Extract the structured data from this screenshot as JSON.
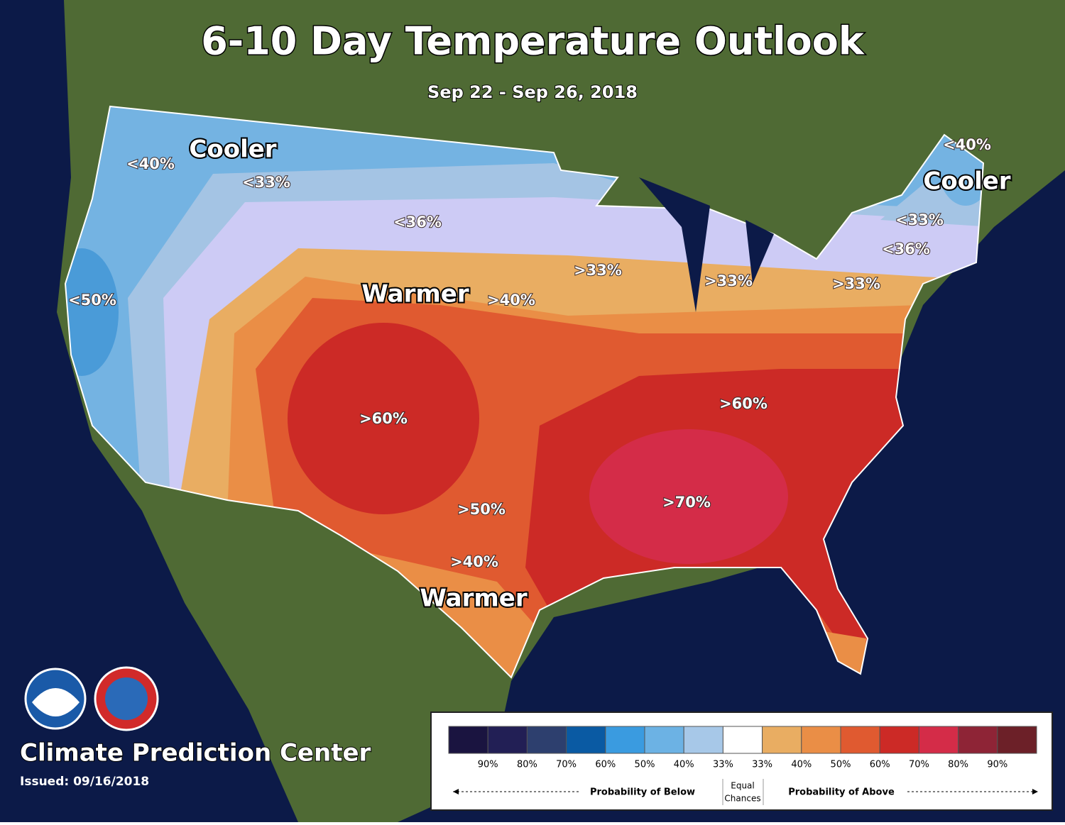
{
  "header": {
    "title": "6-10 Day Temperature Outlook",
    "subtitle": "Sep 22 - Sep 26, 2018"
  },
  "map_labels": [
    "Cooler",
    "<40%",
    "<33%",
    "<36%",
    "<50%",
    "Warmer",
    ">40%",
    ">33%",
    ">33%",
    ">33%",
    ">60%",
    ">60%",
    ">50%",
    ">70%",
    ">40%",
    "Warmer",
    "<40%",
    "Cooler",
    "<33%",
    "<36%"
  ],
  "footer": {
    "center": "Climate Prediction Center",
    "issued": "Issued: 09/16/2018"
  },
  "legend": {
    "colors": [
      "#1a1440",
      "#221f55",
      "#2d3f6e",
      "#0a5aa3",
      "#3a9be0",
      "#6cb2e4",
      "#a7c8e8",
      "#ffffff",
      "#e9ad62",
      "#ea8e46",
      "#e05a30",
      "#cc2a26",
      "#d42c48",
      "#8e2436",
      "#6c2028"
    ],
    "ticks": [
      "90%",
      "80%",
      "70%",
      "60%",
      "50%",
      "40%",
      "33%",
      "33%",
      "40%",
      "50%",
      "60%",
      "70%",
      "80%",
      "90%"
    ],
    "below": "Probability of Below",
    "equal": [
      "Equal",
      "Chances"
    ],
    "above": "Probability of Above"
  }
}
